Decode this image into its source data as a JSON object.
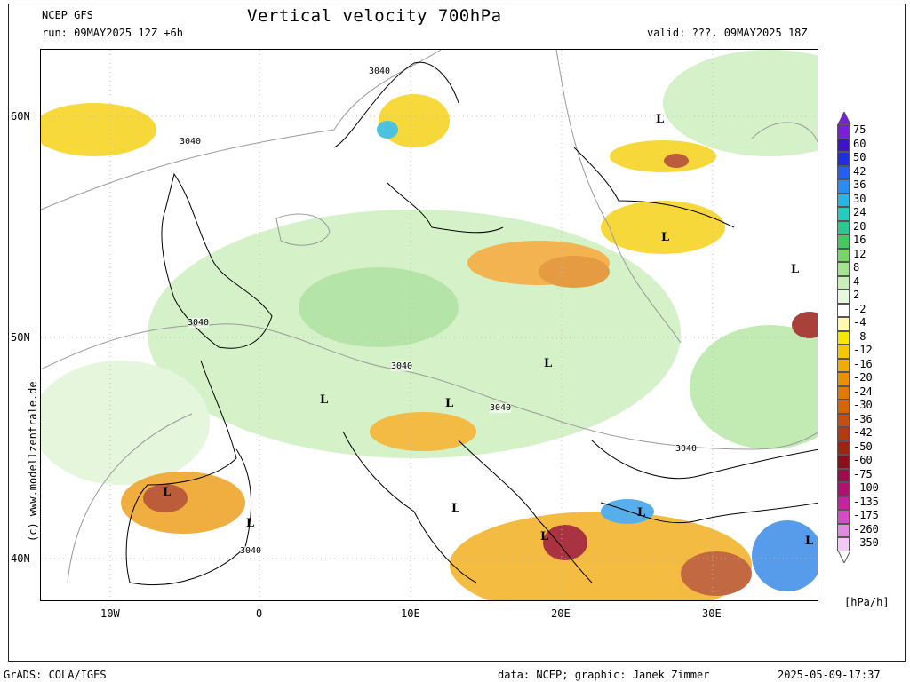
{
  "header": {
    "model": "NCEP GFS",
    "title": "Vertical velocity 700hPa",
    "run": "run: 09MAY2025 12Z +6h",
    "valid": "valid: ???, 09MAY2025 18Z"
  },
  "map": {
    "lon_ticks": [
      "10W",
      "0",
      "10E",
      "20E",
      "30E"
    ],
    "lat_ticks": [
      "60N",
      "50N",
      "40N"
    ],
    "contour_value": "3040",
    "low_marker": "L",
    "colors": {
      "land_outline": "#000000",
      "contour": "#9a9a9a",
      "grid": "#bbbbbb"
    }
  },
  "colorbar": {
    "unit": "[hPa/h]",
    "levels": [
      "75",
      "60",
      "50",
      "42",
      "36",
      "30",
      "24",
      "20",
      "16",
      "12",
      "8",
      "4",
      "2",
      "-2",
      "-4",
      "-8",
      "-12",
      "-16",
      "-20",
      "-24",
      "-30",
      "-36",
      "-42",
      "-50",
      "-60",
      "-75",
      "-100",
      "-135",
      "-175",
      "-260",
      "-350"
    ],
    "colors": [
      "#7a1fd8",
      "#3d14c8",
      "#1f2fe0",
      "#2360f0",
      "#2a8ef0",
      "#25b6e8",
      "#22cdc0",
      "#28c890",
      "#46c860",
      "#7ad46a",
      "#a6e38e",
      "#c9efb8",
      "#e7f8dc",
      "#ffffff",
      "#fff9b0",
      "#f7e600",
      "#f5c800",
      "#f2ac00",
      "#eb9000",
      "#e07a00",
      "#d86400",
      "#c84e10",
      "#b43a14",
      "#9e2412",
      "#8a0f1a",
      "#9b0e4a",
      "#b0106e",
      "#c424a0",
      "#d24cc4",
      "#e08ae0",
      "#f2c8f4"
    ]
  },
  "footer": {
    "left": "GrADS: COLA/IGES",
    "center": "data: NCEP; graphic: Janek Zimmer",
    "right": "2025-05-09-17:37"
  },
  "credit": "(c) www.modellzentrale.de"
}
